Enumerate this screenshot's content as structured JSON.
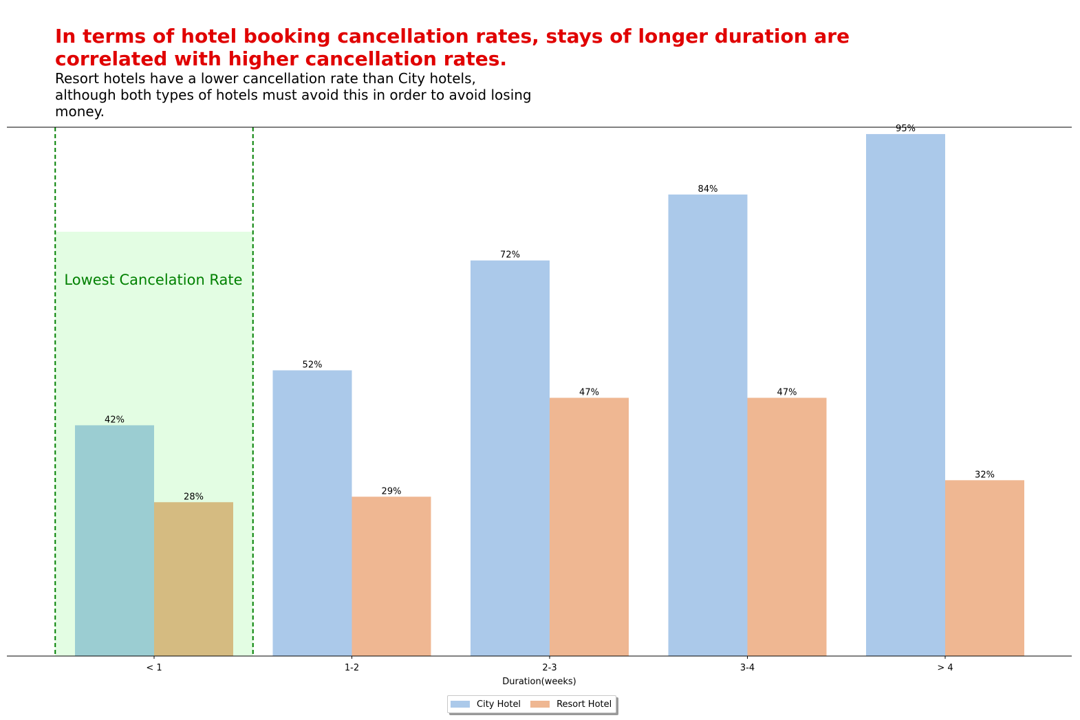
{
  "title": "In terms of hotel booking cancellation rates, stays of longer duration are correlated with higher cancellation rates.",
  "subtitle": "Resort hotels have a lower cancellation rate than City hotels, although both types of hotels must avoid this in order to avoid losing money.",
  "annotation": "Lowest Cancelation Rate",
  "colors": {
    "city": "#abc9ea",
    "resort": "#efb792",
    "city_highlight": "#9bcdd2",
    "resort_highlight": "#d5bb81",
    "highlight_fill": "#e3fde3",
    "highlight_line": "#008000",
    "title": "#e00000"
  },
  "chart_data": {
    "type": "bar",
    "xlabel": "Duration(weeks)",
    "ylabel": "",
    "ylim": [
      0,
      100
    ],
    "categories": [
      "< 1",
      "1-2",
      "2-3",
      "3-4",
      "> 4"
    ],
    "series": [
      {
        "name": "City Hotel",
        "values": [
          42,
          52,
          72,
          84,
          95
        ]
      },
      {
        "name": "Resort Hotel",
        "values": [
          28,
          29,
          47,
          47,
          32
        ]
      }
    ],
    "value_labels": [
      [
        "42%",
        "52%",
        "72%",
        "84%",
        "95%"
      ],
      [
        "28%",
        "29%",
        "47%",
        "47%",
        "32%"
      ]
    ],
    "highlight_category": "< 1",
    "legend": [
      "City Hotel",
      "Resort Hotel"
    ],
    "legend_position": "bottom-center",
    "grid": false
  }
}
